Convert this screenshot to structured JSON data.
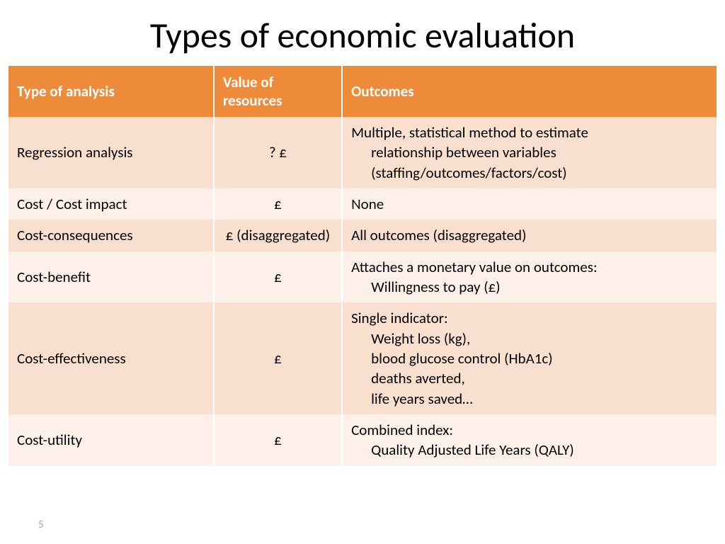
{
  "title": "Types of economic evaluation",
  "page_number": "5",
  "table": {
    "columns": [
      "Type of analysis",
      "Value of resources",
      "Outcomes"
    ],
    "header_bg": "#ed8b3b",
    "header_fg": "#ffffff",
    "row_bg_odd": "#f9e0ce",
    "row_bg_even": "#fcf0e9",
    "rows": [
      {
        "type": "Regression analysis",
        "value": "? £",
        "outcome_lead": "Multiple, statistical method to estimate",
        "outcome_rest": "relationship between variables (staffing/outcomes/factors/cost)"
      },
      {
        "type": "Cost / Cost impact",
        "value": "£",
        "outcome_lead": "None",
        "outcome_rest": ""
      },
      {
        "type": "Cost-consequences",
        "value": "£ (disaggregated)",
        "outcome_lead": "All outcomes (disaggregated)",
        "outcome_rest": ""
      },
      {
        "type": "Cost-benefit",
        "value": "£",
        "outcome_lead": "Attaches a monetary value on outcomes:",
        "outcome_rest": "Willingness to pay (£)"
      },
      {
        "type": "Cost-effectiveness",
        "value": "£",
        "outcome_lead": "Single indicator:",
        "outcome_rest": "Weight loss (kg),\nblood glucose control (HbA1c)\ndeaths averted,\nlife years saved…"
      },
      {
        "type": "Cost-utility",
        "value": "£",
        "outcome_lead": "Combined index:",
        "outcome_rest": "Quality Adjusted Life Years  (QALY)"
      }
    ]
  }
}
